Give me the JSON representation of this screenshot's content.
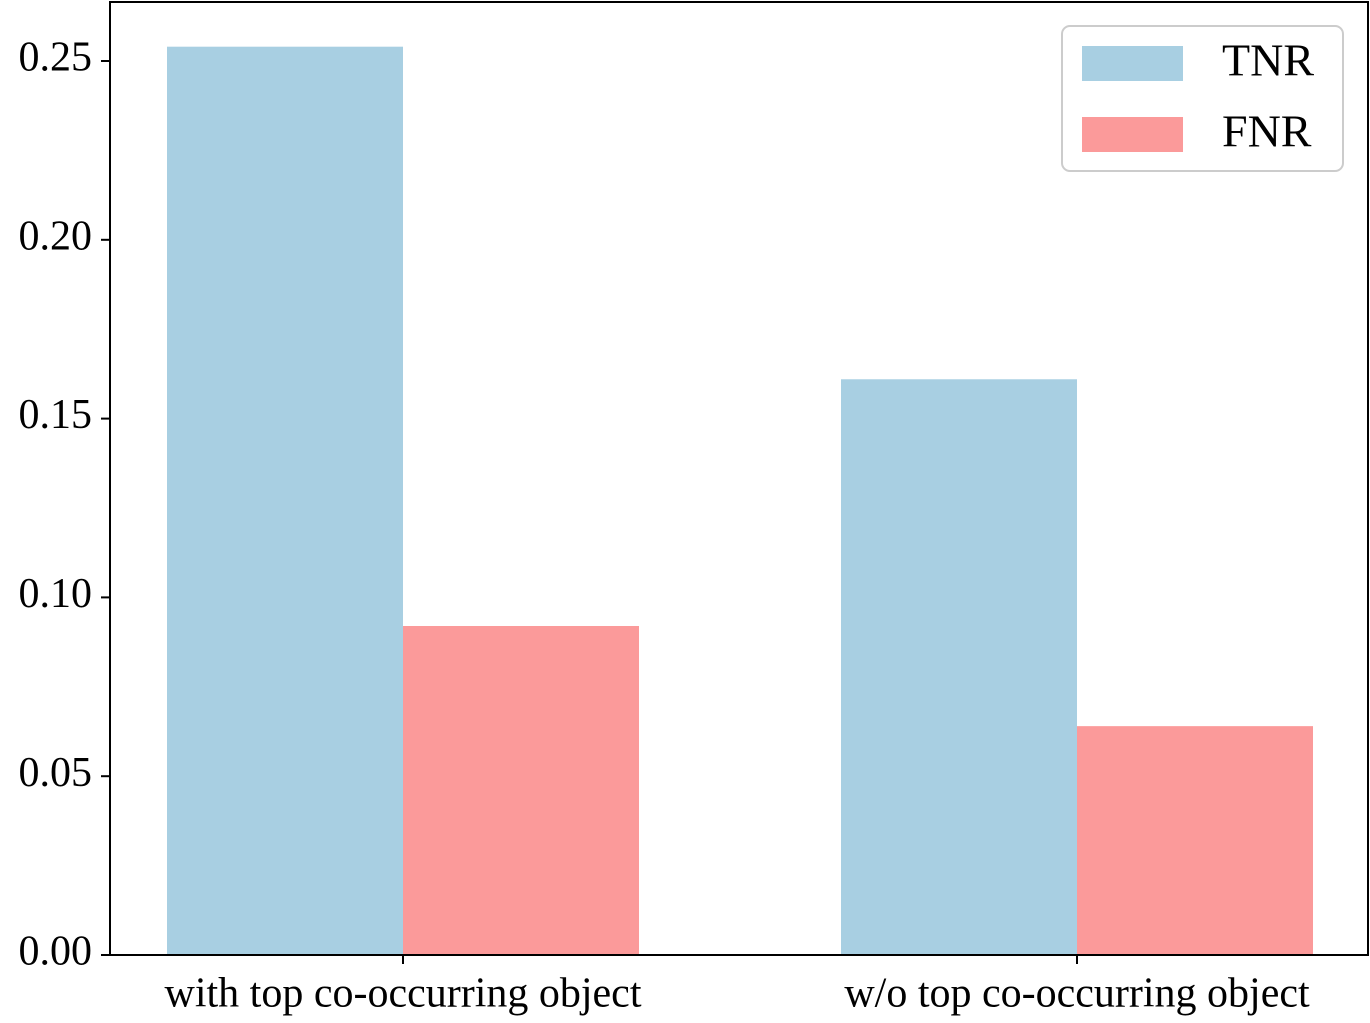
{
  "chart_data": {
    "type": "bar",
    "categories": [
      "with top co-occurring object",
      "w/o top co-occurring object"
    ],
    "series": [
      {
        "name": "TNR",
        "color": "#a8cfe2",
        "values": [
          0.254,
          0.161
        ]
      },
      {
        "name": "FNR",
        "color": "#fb9a9a",
        "values": [
          0.092,
          0.064
        ]
      }
    ],
    "ylim": [
      0,
      0.2665
    ],
    "yticks": [
      {
        "value": 0,
        "label": "0.00"
      },
      {
        "value": 0.05,
        "label": "0.05"
      },
      {
        "value": 0.1,
        "label": "0.10"
      },
      {
        "value": 0.15,
        "label": "0.15"
      },
      {
        "value": 0.2,
        "label": "0.20"
      },
      {
        "value": 0.25,
        "label": "0.25"
      }
    ],
    "legend": "upper right",
    "grid": false
  }
}
